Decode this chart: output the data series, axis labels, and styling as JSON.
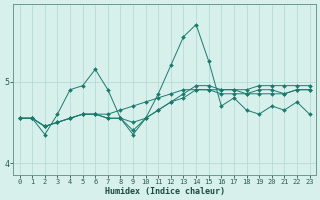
{
  "title": "",
  "xlabel": "Humidex (Indice chaleur)",
  "bg_color": "#d8f0ec",
  "grid_color": "#b8dcd8",
  "line_color": "#1a7a6e",
  "x": [
    0,
    1,
    2,
    3,
    4,
    5,
    6,
    7,
    8,
    9,
    10,
    11,
    12,
    13,
    14,
    15,
    16,
    17,
    18,
    19,
    20,
    21,
    22,
    23
  ],
  "lines": [
    [
      4.55,
      4.55,
      4.35,
      4.6,
      4.9,
      4.95,
      5.15,
      4.9,
      4.55,
      4.4,
      4.55,
      4.85,
      5.2,
      5.55,
      5.7,
      5.25,
      4.7,
      4.8,
      4.65,
      4.6,
      4.7,
      4.65,
      4.75,
      4.6
    ],
    [
      4.55,
      4.55,
      4.45,
      4.5,
      4.55,
      4.6,
      4.6,
      4.55,
      4.55,
      4.5,
      4.55,
      4.65,
      4.75,
      4.85,
      4.95,
      4.95,
      4.9,
      4.9,
      4.85,
      4.9,
      4.9,
      4.85,
      4.9,
      4.9
    ],
    [
      4.55,
      4.55,
      4.45,
      4.5,
      4.55,
      4.6,
      4.6,
      4.55,
      4.55,
      4.35,
      4.55,
      4.65,
      4.75,
      4.8,
      4.9,
      4.9,
      4.85,
      4.85,
      4.85,
      4.85,
      4.85,
      4.85,
      4.9,
      4.9
    ],
    [
      4.55,
      4.55,
      4.45,
      4.5,
      4.55,
      4.6,
      4.6,
      4.6,
      4.65,
      4.7,
      4.75,
      4.8,
      4.85,
      4.9,
      4.9,
      4.9,
      4.9,
      4.9,
      4.9,
      4.95,
      4.95,
      4.95,
      4.95,
      4.95
    ]
  ],
  "ylim": [
    3.85,
    5.95
  ],
  "yticks": [
    4,
    5
  ],
  "xlim": [
    -0.5,
    23.5
  ],
  "xlabel_fontsize": 6,
  "tick_fontsize": 5,
  "ytick_fontsize": 6,
  "lw": 0.7,
  "markersize": 2.0
}
